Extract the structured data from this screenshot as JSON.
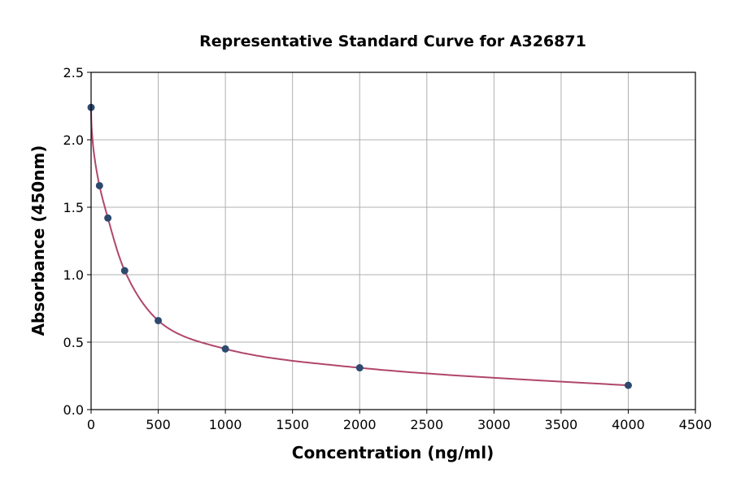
{
  "chart_data": {
    "type": "scatter",
    "title": "Representative Standard Curve for A326871",
    "xlabel": "Concentration (ng/ml)",
    "ylabel": "Absorbance (450nm)",
    "xlim": [
      0,
      4500
    ],
    "ylim": [
      0,
      2.5
    ],
    "xticks": [
      0,
      500,
      1000,
      1500,
      2000,
      2500,
      3000,
      3500,
      4000,
      4500
    ],
    "yticks": [
      "0.0",
      "0.5",
      "1.0",
      "1.5",
      "2.0",
      "2.5"
    ],
    "grid": true,
    "series": [
      {
        "x": [
          0,
          62.5,
          125,
          250,
          500,
          1000,
          2000,
          4000
        ],
        "y": [
          2.24,
          1.66,
          1.42,
          1.03,
          0.66,
          0.45,
          0.31,
          0.18
        ]
      }
    ],
    "fit_curve": true,
    "colors": {
      "points": "#2d4a6e",
      "curve": "#b0466c",
      "grid": "#b0b0b0"
    }
  }
}
